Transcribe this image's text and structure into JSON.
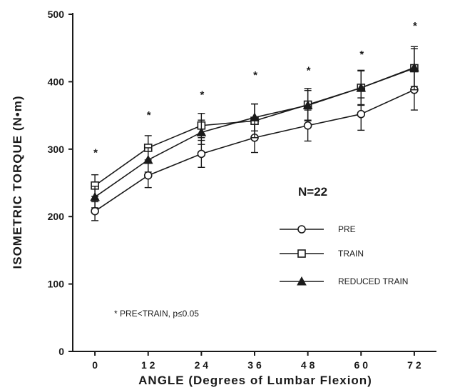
{
  "chart_data": {
    "type": "line",
    "xlabel": "ANGLE (Degrees of Lumbar Flexion)",
    "ylabel": "ISOMETRIC TORQUE (N•m)",
    "x": [
      0,
      12,
      24,
      36,
      48,
      60,
      72
    ],
    "x_tick_labels": [
      "0",
      "1 2",
      "2 4",
      "3 6",
      "4 8",
      "6 0",
      "7 2"
    ],
    "xlim": [
      -5,
      77
    ],
    "ylim": [
      0,
      500
    ],
    "y_ticks": [
      0,
      100,
      200,
      300,
      400,
      500
    ],
    "y_tick_labels": [
      "0",
      "100",
      "200",
      "300",
      "400",
      "500"
    ],
    "grid": false,
    "series": [
      {
        "name": "PRE",
        "marker": "circle-open",
        "values": [
          208,
          261,
          293,
          317,
          335,
          352,
          388
        ],
        "errors": [
          14,
          18,
          20,
          22,
          23,
          24,
          30
        ]
      },
      {
        "name": "TRAIN",
        "marker": "square-open",
        "values": [
          246,
          302,
          335,
          342,
          366,
          391,
          420
        ],
        "errors": [
          16,
          18,
          18,
          25,
          24,
          26,
          32
        ]
      },
      {
        "name": "REDUCED TRAIN",
        "marker": "triangle-filled",
        "values": [
          229,
          284,
          325,
          347,
          365,
          391,
          421
        ],
        "errors": [
          16,
          18,
          18,
          20,
          22,
          25,
          28
        ]
      }
    ],
    "significance": {
      "symbol": "*",
      "values": [
        298,
        354,
        384,
        413,
        420,
        444,
        486
      ]
    },
    "annotations": {
      "n_label": "N=22",
      "note": "* PRE<TRAIN,  p≤0.05"
    },
    "legend_placement": "right-center",
    "colors": {
      "ink": "#1a1a1a",
      "background": "#ffffff"
    }
  }
}
